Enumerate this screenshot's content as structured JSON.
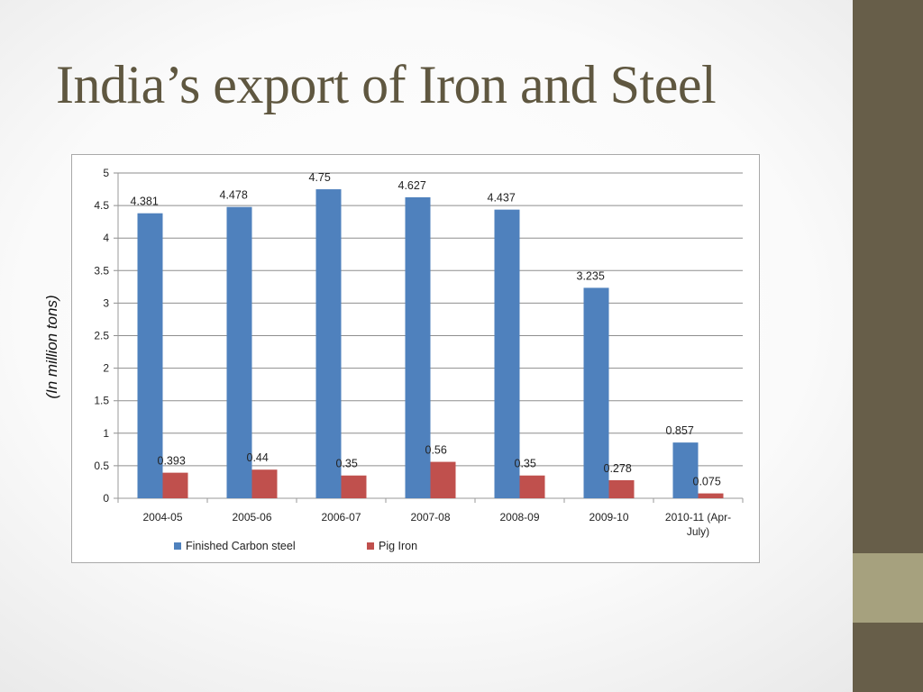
{
  "slide": {
    "title": "India’s export of Iron and Steel",
    "y_unit_label": "(In million tons)"
  },
  "colors": {
    "finished_carbon_steel": "#4f81bd",
    "pig_iron": "#c0504d",
    "sidebar": "#675e49",
    "sidebar_accent": "#a6a17e",
    "title": "#5f5740"
  },
  "chart_data": {
    "type": "bar",
    "categories": [
      "2004-05",
      "2005-06",
      "2006-07",
      "2007-08",
      "2008-09",
      "2009-10",
      "2010-11 (Apr-July)"
    ],
    "category_label_lines": [
      [
        "2004-05"
      ],
      [
        "2005-06"
      ],
      [
        "2006-07"
      ],
      [
        "2007-08"
      ],
      [
        "2008-09"
      ],
      [
        "2009-10"
      ],
      [
        "2010-11 (Apr-",
        "July)"
      ]
    ],
    "series": [
      {
        "name": "Finished Carbon steel",
        "values": [
          4.381,
          4.478,
          4.75,
          4.627,
          4.437,
          3.235,
          0.857
        ],
        "labels": [
          "4.381",
          "4.478",
          "4.75",
          "4.627",
          "4.437",
          "3.235",
          "0.857"
        ]
      },
      {
        "name": "Pig Iron",
        "values": [
          0.393,
          0.44,
          0.35,
          0.56,
          0.35,
          0.278,
          0.075
        ],
        "labels": [
          "0.393",
          "0.44",
          "0.35",
          "0.56",
          "0.35",
          "0.278",
          "0.075"
        ]
      }
    ],
    "ylim": [
      0,
      5
    ],
    "yticks": [
      0,
      0.5,
      1,
      1.5,
      2,
      2.5,
      3,
      3.5,
      4,
      4.5,
      5
    ],
    "ytick_labels": [
      "0",
      "0.5",
      "1",
      "1.5",
      "2",
      "2.5",
      "3",
      "3.5",
      "4",
      "4.5",
      "5"
    ],
    "grid": true,
    "legend_position": "bottom"
  }
}
